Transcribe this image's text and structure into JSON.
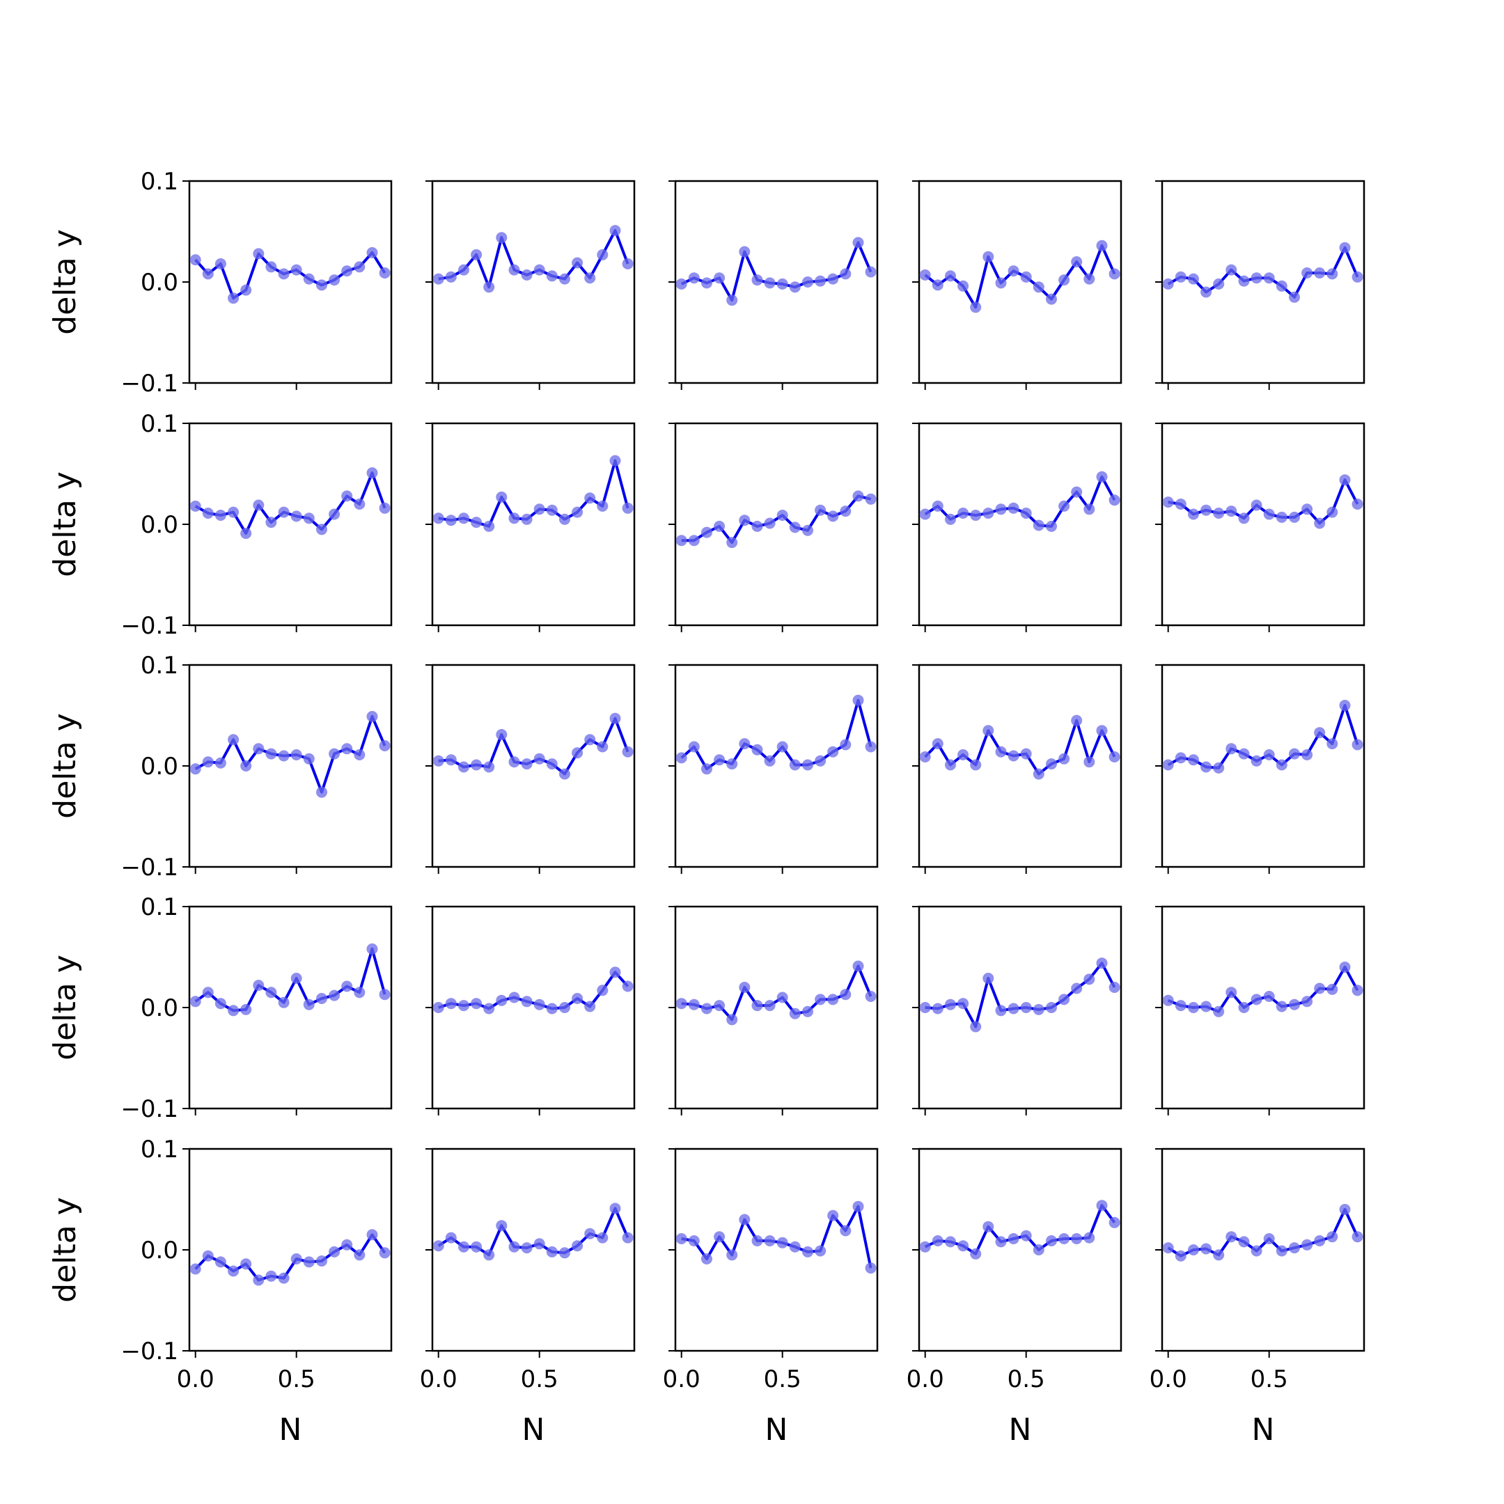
{
  "chart_data": {
    "type": "line",
    "layout": {
      "rows": 5,
      "cols": 5
    },
    "xlabel": "N",
    "ylabel": "delta y",
    "xlim": [
      -0.03,
      0.97
    ],
    "ylim": [
      -0.1,
      0.1
    ],
    "xticks": [
      0.0,
      0.5
    ],
    "xtick_labels": [
      "0.0",
      "0.5"
    ],
    "yticks": [
      -0.1,
      0.0,
      0.1
    ],
    "ytick_labels": [
      "−0.1",
      "0.0",
      "0.1"
    ],
    "x": [
      0.0,
      0.0625,
      0.125,
      0.1875,
      0.25,
      0.3125,
      0.375,
      0.4375,
      0.5,
      0.5625,
      0.625,
      0.6875,
      0.75,
      0.8125,
      0.875,
      0.9375
    ],
    "line_color": "#0000ee",
    "marker_color": "#6a6ae8",
    "panels": [
      [
        0.022,
        0.008,
        0.018,
        -0.016,
        -0.008,
        0.028,
        0.015,
        0.008,
        0.012,
        0.003,
        -0.003,
        0.002,
        0.011,
        0.015,
        0.029,
        0.009
      ],
      [
        0.003,
        0.005,
        0.012,
        0.027,
        -0.005,
        0.044,
        0.012,
        0.007,
        0.012,
        0.006,
        0.003,
        0.019,
        0.004,
        0.027,
        0.051,
        0.018
      ],
      [
        -0.002,
        0.004,
        -0.001,
        0.004,
        -0.018,
        0.03,
        0.002,
        -0.001,
        -0.002,
        -0.005,
        0.0,
        0.001,
        0.003,
        0.008,
        0.039,
        0.01
      ],
      [
        0.007,
        -0.003,
        0.006,
        -0.004,
        -0.025,
        0.025,
        -0.001,
        0.011,
        0.005,
        -0.005,
        -0.017,
        0.002,
        0.02,
        0.003,
        0.036,
        0.008
      ],
      [
        -0.002,
        0.005,
        0.003,
        -0.01,
        -0.002,
        0.012,
        0.001,
        0.004,
        0.004,
        -0.004,
        -0.015,
        0.009,
        0.009,
        0.008,
        0.034,
        0.005
      ],
      [
        0.018,
        0.011,
        0.009,
        0.012,
        -0.009,
        0.019,
        0.002,
        0.012,
        0.008,
        0.006,
        -0.005,
        0.01,
        0.028,
        0.02,
        0.051,
        0.016
      ],
      [
        0.006,
        0.004,
        0.006,
        0.002,
        -0.002,
        0.027,
        0.006,
        0.005,
        0.015,
        0.014,
        0.005,
        0.012,
        0.026,
        0.018,
        0.063,
        0.016
      ],
      [
        -0.016,
        -0.016,
        -0.008,
        -0.002,
        -0.018,
        0.004,
        -0.002,
        0.001,
        0.009,
        -0.003,
        -0.006,
        0.014,
        0.008,
        0.013,
        0.028,
        0.025
      ],
      [
        0.01,
        0.018,
        0.005,
        0.011,
        0.009,
        0.011,
        0.015,
        0.016,
        0.011,
        -0.001,
        -0.002,
        0.018,
        0.032,
        0.015,
        0.047,
        0.024
      ],
      [
        0.022,
        0.02,
        0.01,
        0.014,
        0.011,
        0.013,
        0.006,
        0.019,
        0.01,
        0.007,
        0.007,
        0.015,
        0.001,
        0.012,
        0.044,
        0.02
      ],
      [
        -0.003,
        0.004,
        0.003,
        0.026,
        0.0,
        0.017,
        0.012,
        0.01,
        0.011,
        0.007,
        -0.026,
        0.012,
        0.017,
        0.011,
        0.049,
        0.02
      ],
      [
        0.005,
        0.006,
        -0.001,
        0.001,
        -0.001,
        0.031,
        0.004,
        0.002,
        0.007,
        0.002,
        -0.008,
        0.013,
        0.026,
        0.019,
        0.047,
        0.014
      ],
      [
        0.008,
        0.019,
        -0.003,
        0.006,
        0.002,
        0.022,
        0.016,
        0.005,
        0.019,
        0.001,
        0.001,
        0.005,
        0.014,
        0.021,
        0.065,
        0.019
      ],
      [
        0.009,
        0.022,
        0.001,
        0.011,
        0.001,
        0.035,
        0.014,
        0.01,
        0.012,
        -0.008,
        0.002,
        0.007,
        0.045,
        0.004,
        0.035,
        0.009
      ],
      [
        0.001,
        0.008,
        0.006,
        -0.001,
        -0.002,
        0.017,
        0.012,
        0.005,
        0.011,
        0.001,
        0.012,
        0.011,
        0.033,
        0.022,
        0.06,
        0.021
      ],
      [
        0.006,
        0.015,
        0.004,
        -0.003,
        -0.002,
        0.022,
        0.015,
        0.005,
        0.029,
        0.003,
        0.009,
        0.012,
        0.021,
        0.015,
        0.058,
        0.013
      ],
      [
        0.0,
        0.004,
        0.002,
        0.004,
        -0.001,
        0.007,
        0.01,
        0.006,
        0.003,
        -0.001,
        0.0,
        0.009,
        0.001,
        0.017,
        0.035,
        0.021
      ],
      [
        0.004,
        0.003,
        -0.001,
        0.002,
        -0.012,
        0.02,
        0.002,
        0.002,
        0.01,
        -0.006,
        -0.004,
        0.008,
        0.008,
        0.013,
        0.041,
        0.011
      ],
      [
        0.0,
        -0.001,
        0.003,
        0.004,
        -0.019,
        0.029,
        -0.003,
        -0.001,
        0.0,
        -0.002,
        0.0,
        0.008,
        0.019,
        0.028,
        0.044,
        0.02
      ],
      [
        0.007,
        0.002,
        0.0,
        0.001,
        -0.004,
        0.015,
        0.0,
        0.008,
        0.011,
        0.001,
        0.003,
        0.006,
        0.019,
        0.018,
        0.04,
        0.017
      ],
      [
        -0.019,
        -0.006,
        -0.012,
        -0.021,
        -0.014,
        -0.03,
        -0.026,
        -0.028,
        -0.009,
        -0.012,
        -0.011,
        -0.002,
        0.005,
        -0.005,
        0.015,
        -0.003
      ],
      [
        0.004,
        0.012,
        0.003,
        0.003,
        -0.005,
        0.024,
        0.003,
        0.002,
        0.006,
        -0.002,
        -0.003,
        0.004,
        0.016,
        0.012,
        0.041,
        0.012
      ],
      [
        0.011,
        0.009,
        -0.009,
        0.013,
        -0.005,
        0.03,
        0.009,
        0.009,
        0.007,
        0.003,
        -0.002,
        -0.001,
        0.034,
        0.019,
        0.043,
        -0.018
      ],
      [
        0.003,
        0.009,
        0.008,
        0.004,
        -0.004,
        0.023,
        0.008,
        0.011,
        0.014,
        0.0,
        0.009,
        0.011,
        0.011,
        0.012,
        0.044,
        0.027
      ],
      [
        0.002,
        -0.006,
        0.0,
        0.001,
        -0.005,
        0.013,
        0.008,
        -0.001,
        0.011,
        -0.001,
        0.002,
        0.005,
        0.009,
        0.013,
        0.04,
        0.013
      ]
    ]
  }
}
